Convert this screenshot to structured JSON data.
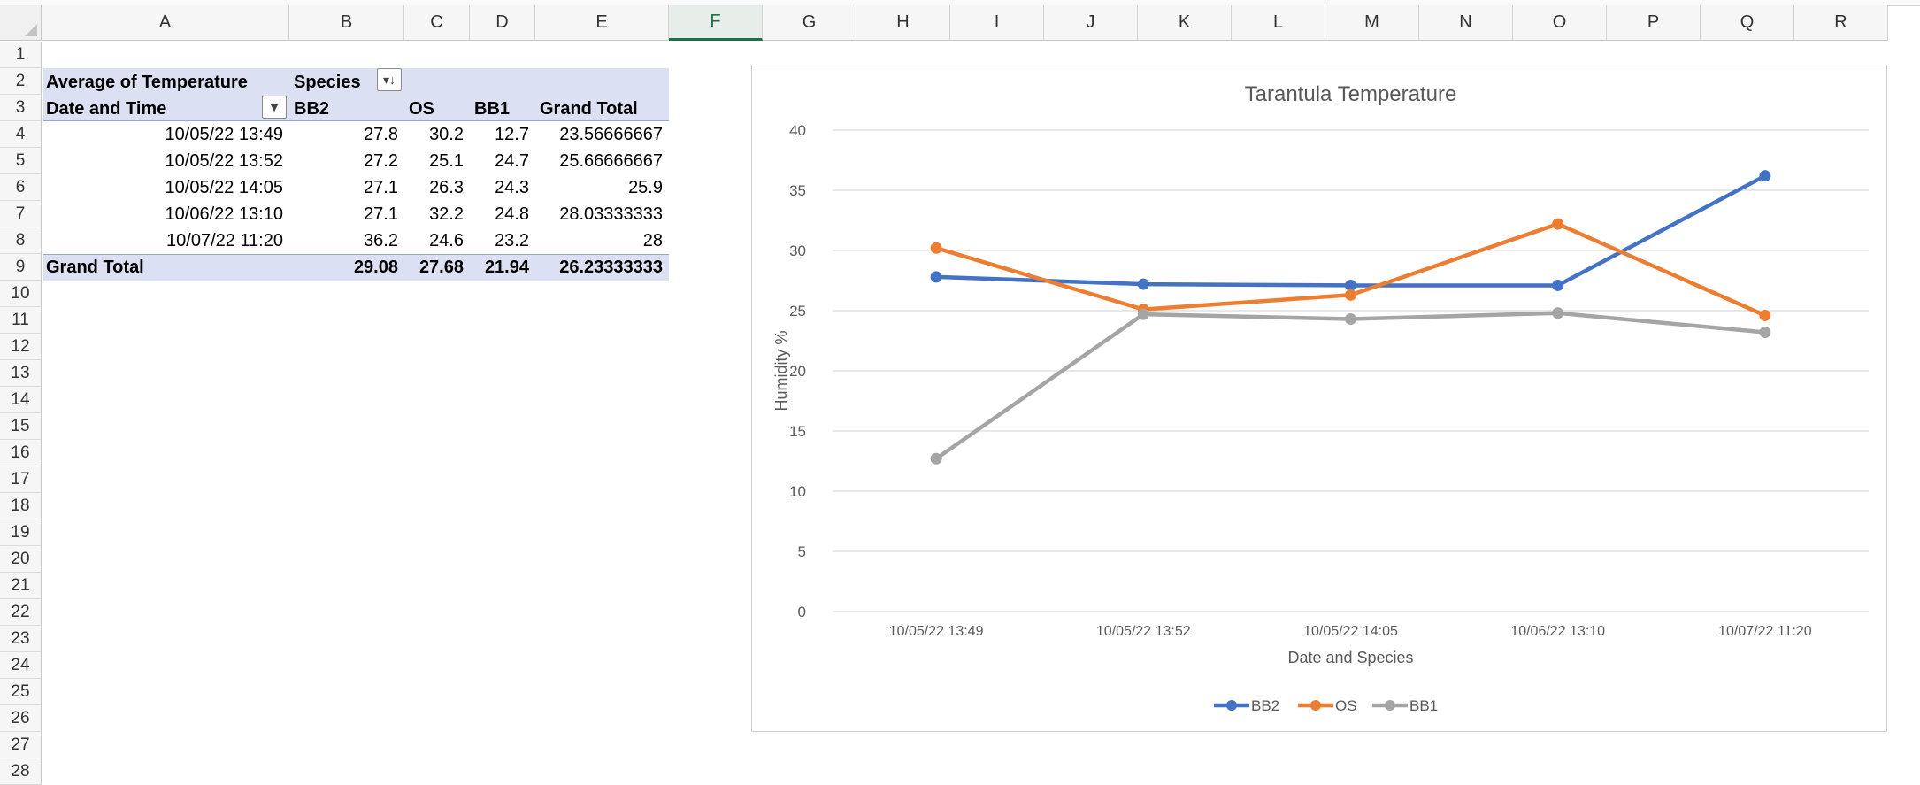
{
  "columns": [
    "A",
    "B",
    "C",
    "D",
    "E",
    "F",
    "G",
    "H",
    "I",
    "J",
    "K",
    "L",
    "M",
    "N",
    "O",
    "P",
    "Q",
    "R"
  ],
  "active_column": "F",
  "rows": [
    "1",
    "2",
    "3",
    "4",
    "5",
    "6",
    "7",
    "8",
    "9",
    "10",
    "11",
    "12",
    "13",
    "14",
    "15",
    "16",
    "17",
    "18",
    "19",
    "20",
    "21",
    "22",
    "23",
    "24",
    "25",
    "26",
    "27",
    "28"
  ],
  "pivot": {
    "title": "Average of Temperature",
    "column_field": "Species",
    "row_field": "Date and Time",
    "headers": [
      "BB2",
      "OS",
      "BB1",
      "Grand Total"
    ],
    "rows": [
      {
        "label": "10/05/22 13:49",
        "values": [
          "27.8",
          "30.2",
          "12.7",
          "23.56666667"
        ]
      },
      {
        "label": "10/05/22 13:52",
        "values": [
          "27.2",
          "25.1",
          "24.7",
          "25.66666667"
        ]
      },
      {
        "label": "10/05/22 14:05",
        "values": [
          "27.1",
          "26.3",
          "24.3",
          "25.9"
        ]
      },
      {
        "label": "10/06/22 13:10",
        "values": [
          "27.1",
          "32.2",
          "24.8",
          "28.03333333"
        ]
      },
      {
        "label": "10/07/22 11:20",
        "values": [
          "36.2",
          "24.6",
          "23.2",
          "28"
        ]
      }
    ],
    "grand_total": {
      "label": "Grand Total",
      "values": [
        "29.08",
        "27.68",
        "21.94",
        "26.23333333"
      ]
    }
  },
  "chart_data": {
    "type": "line",
    "title": "Tarantula Temperature",
    "xlabel": "Date and Species",
    "ylabel": "Humidity %",
    "ylim": [
      0,
      40
    ],
    "yticks": [
      0,
      5,
      10,
      15,
      20,
      25,
      30,
      35,
      40
    ],
    "categories": [
      "10/05/22 13:49",
      "10/05/22 13:52",
      "10/05/22 14:05",
      "10/06/22 13:10",
      "10/07/22 11:20"
    ],
    "series": [
      {
        "name": "BB2",
        "color": "#4472c4",
        "values": [
          27.8,
          27.2,
          27.1,
          27.1,
          36.2
        ]
      },
      {
        "name": "OS",
        "color": "#ed7d31",
        "values": [
          30.2,
          25.1,
          26.3,
          32.2,
          24.6
        ]
      },
      {
        "name": "BB1",
        "color": "#a5a5a5",
        "values": [
          12.7,
          24.7,
          24.3,
          24.8,
          23.2
        ]
      }
    ],
    "grid": true,
    "legend": "bottom"
  }
}
